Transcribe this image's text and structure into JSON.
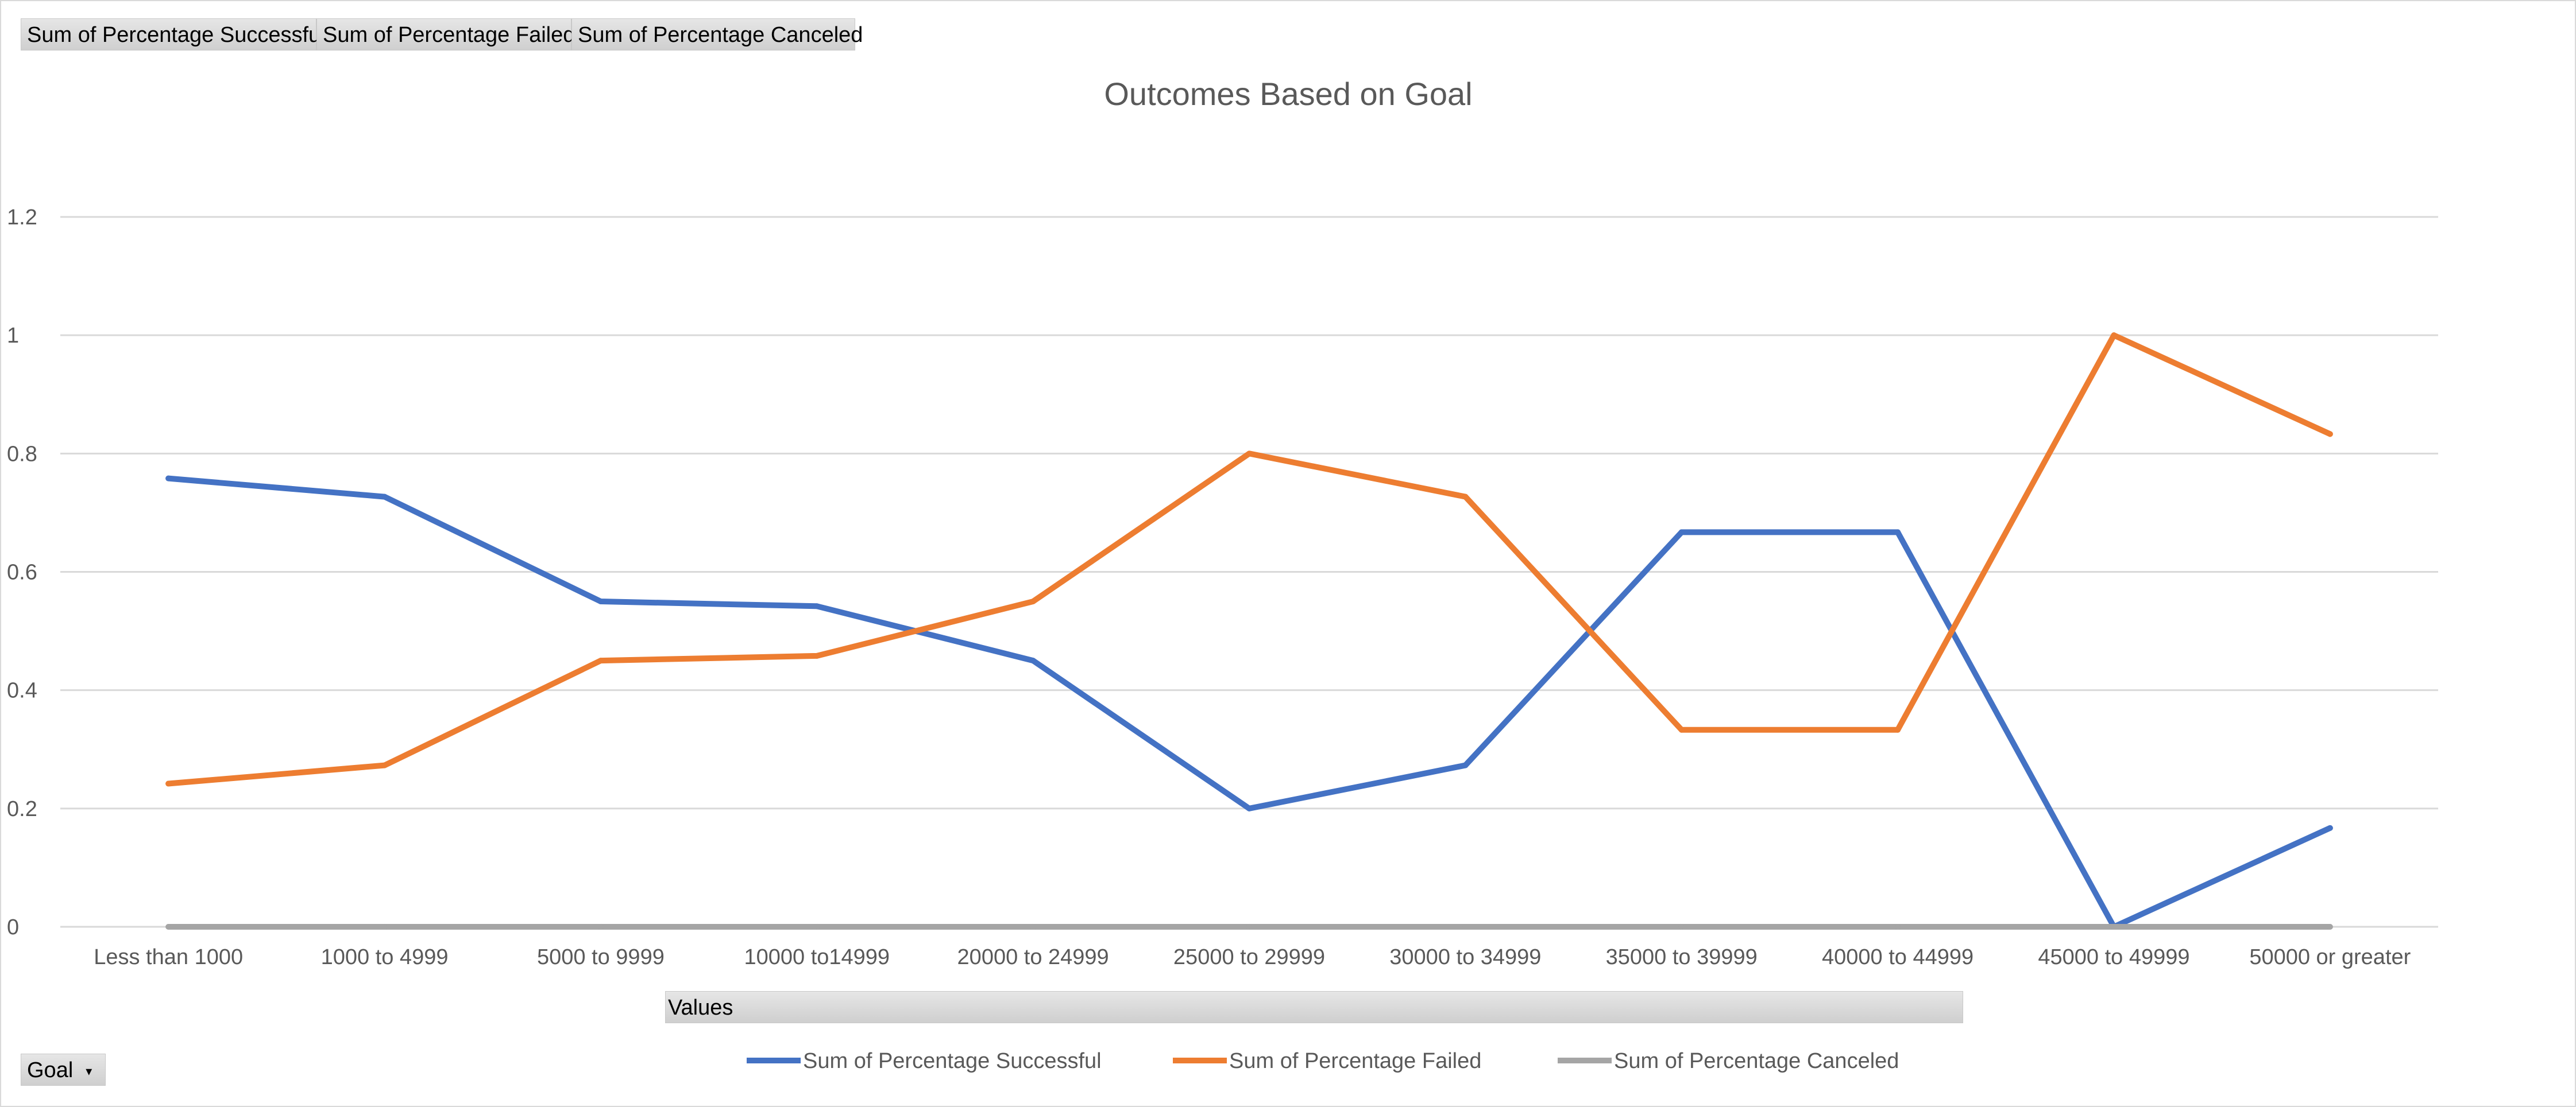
{
  "field_buttons": {
    "successful": "Sum of Percentage  Successful",
    "failed": "Sum of Percentage  Failed",
    "canceled": "Sum of Percentage  Canceled",
    "values": "Values",
    "goal": "Goal",
    "goal_dropdown_icon": "dropdown-arrow-icon"
  },
  "chart_data": {
    "type": "line",
    "title": "Outcomes Based on Goal",
    "xlabel": "",
    "ylabel": "",
    "ylim": [
      0,
      1.2
    ],
    "yticks": [
      "0",
      "0.2",
      "0.4",
      "0.6",
      "0.8",
      "1",
      "1.2"
    ],
    "grid": true,
    "legend_position": "bottom",
    "categories": [
      "Less than 1000",
      "1000 to 4999",
      "5000 to 9999",
      "10000 to14999",
      "20000 to 24999",
      "25000 to 29999",
      "30000 to 34999",
      "35000 to 39999",
      "40000 to 44999",
      "45000 to 49999",
      "50000 or greater"
    ],
    "series": [
      {
        "name": "Sum of Percentage Successful",
        "color": "#4472c4",
        "values": [
          0.758,
          0.727,
          0.55,
          0.542,
          0.45,
          0.2,
          0.273,
          0.667,
          0.667,
          0,
          0.167
        ]
      },
      {
        "name": "Sum of Percentage Failed",
        "color": "#ed7d31",
        "values": [
          0.242,
          0.273,
          0.45,
          0.458,
          0.55,
          0.8,
          0.727,
          0.333,
          0.333,
          1,
          0.833
        ]
      },
      {
        "name": "Sum of Percentage Canceled",
        "color": "#a5a5a5",
        "values": [
          0,
          0,
          0,
          0,
          0,
          0,
          0,
          0,
          0,
          0,
          0
        ]
      }
    ]
  },
  "colors": {
    "gridline": "#d9d9d9",
    "text": "#595959"
  }
}
